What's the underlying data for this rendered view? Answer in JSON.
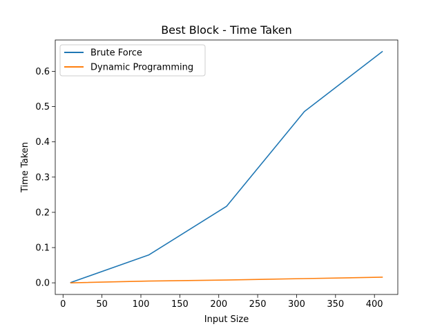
{
  "chart_data": {
    "type": "line",
    "title": "Best Block - Time Taken",
    "xlabel": "Input Size",
    "ylabel": "Time Taken",
    "xlim": [
      -10,
      430
    ],
    "ylim": [
      -0.033,
      0.689
    ],
    "xticks": [
      0,
      50,
      100,
      150,
      200,
      250,
      300,
      350,
      400
    ],
    "xtick_labels": [
      "0",
      "50",
      "100",
      "150",
      "200",
      "250",
      "300",
      "350",
      "400"
    ],
    "yticks": [
      0.0,
      0.1,
      0.2,
      0.3,
      0.4,
      0.5,
      0.6
    ],
    "ytick_labels": [
      "0.0",
      "0.1",
      "0.2",
      "0.3",
      "0.4",
      "0.5",
      "0.6"
    ],
    "grid": false,
    "legend_position": "top-left",
    "x": [
      10,
      110,
      210,
      310,
      410
    ],
    "series": [
      {
        "name": "Brute Force",
        "color": "#1f77b4",
        "values": [
          0.001,
          0.079,
          0.217,
          0.486,
          0.656
        ]
      },
      {
        "name": "Dynamic Programming",
        "color": "#ff7f0e",
        "values": [
          0.0,
          0.005,
          0.008,
          0.012,
          0.016
        ]
      }
    ]
  }
}
